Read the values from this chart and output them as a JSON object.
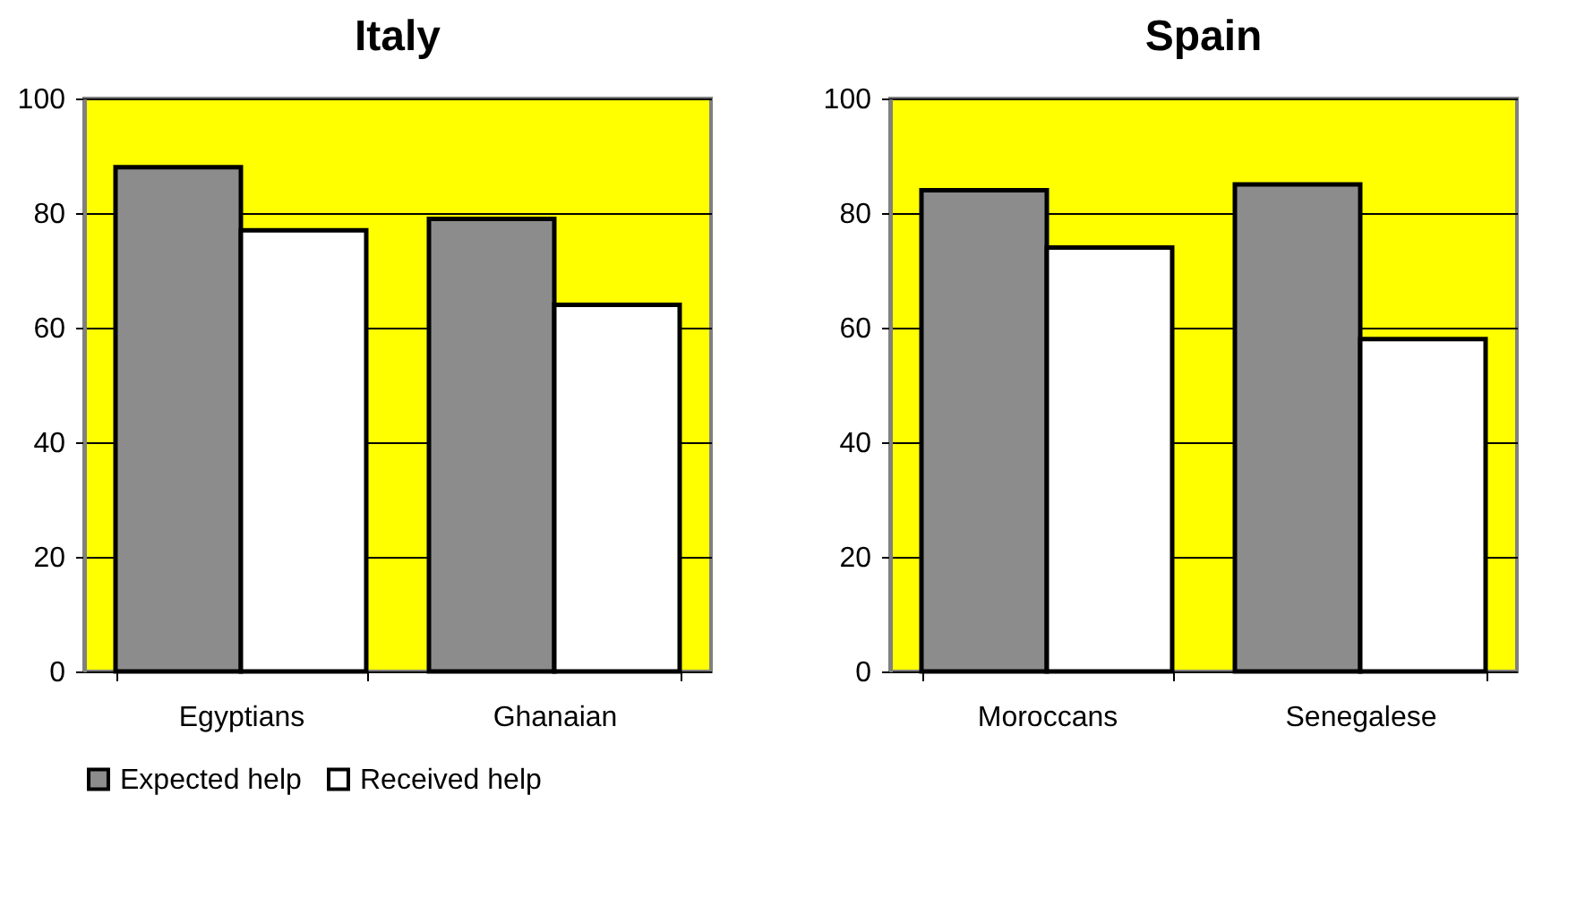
{
  "chart_data": [
    {
      "type": "bar",
      "title": "Italy",
      "categories": [
        "Egyptians",
        "Ghanaian"
      ],
      "series": [
        {
          "name": "Expected help",
          "color": "#8c8c8c",
          "values": [
            88,
            79
          ]
        },
        {
          "name": "Received help",
          "color": "#ffffff",
          "values": [
            77,
            64
          ]
        }
      ],
      "ylim": [
        0,
        100
      ],
      "yticks": [
        0,
        20,
        40,
        60,
        80,
        100
      ],
      "grid": "y",
      "legend": "bottom"
    },
    {
      "type": "bar",
      "title": "Spain",
      "categories": [
        "Moroccans",
        "Senegalese"
      ],
      "series": [
        {
          "name": "Expected help",
          "color": "#8c8c8c",
          "values": [
            84,
            85
          ]
        },
        {
          "name": "Received help",
          "color": "#ffffff",
          "values": [
            74,
            58
          ]
        }
      ],
      "ylim": [
        0,
        100
      ],
      "yticks": [
        0,
        20,
        40,
        60,
        80,
        100
      ],
      "grid": "y",
      "legend": "bottom"
    }
  ]
}
